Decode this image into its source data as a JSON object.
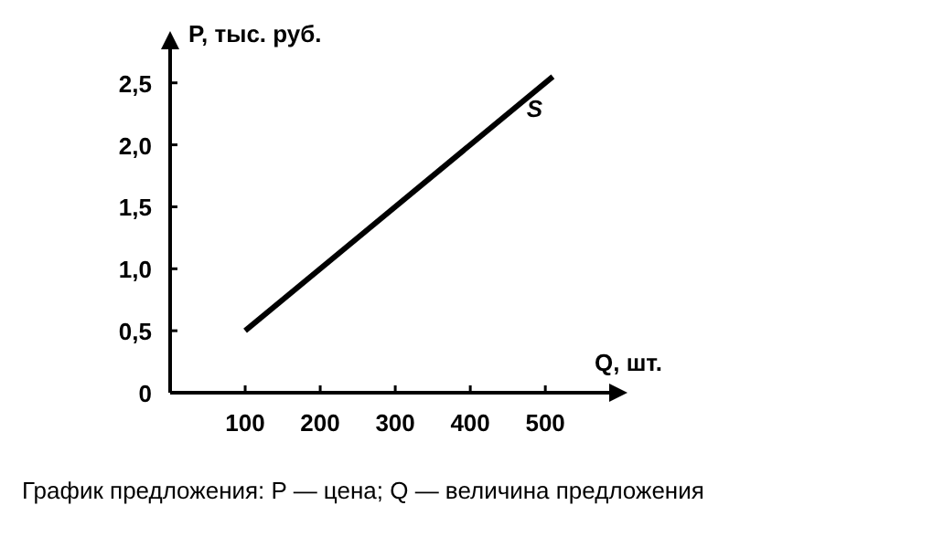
{
  "chart_data": {
    "type": "line",
    "xlabel": "Q, шт.",
    "ylabel": "P, тыс. руб.",
    "x": [
      100,
      510
    ],
    "series": [
      {
        "name": "S",
        "color": "#000000",
        "values": [
          0.5,
          2.55
        ]
      }
    ],
    "xlim": [
      0,
      590
    ],
    "ylim": [
      0,
      2.8
    ],
    "xticks": [
      100,
      200,
      300,
      400,
      500
    ],
    "yticks": [
      0,
      {
        "value": 0.5,
        "label": "0,5"
      },
      {
        "value": 1,
        "label": "1,0"
      },
      {
        "value": 1.5,
        "label": "1,5"
      },
      {
        "value": 2,
        "label": "2,0"
      },
      {
        "value": 2.5,
        "label": "2,5"
      }
    ],
    "grid": false,
    "marker": "none",
    "line_style": "solid",
    "annotations": [
      "График предложения: P — цена; Q — величина предложения"
    ]
  }
}
